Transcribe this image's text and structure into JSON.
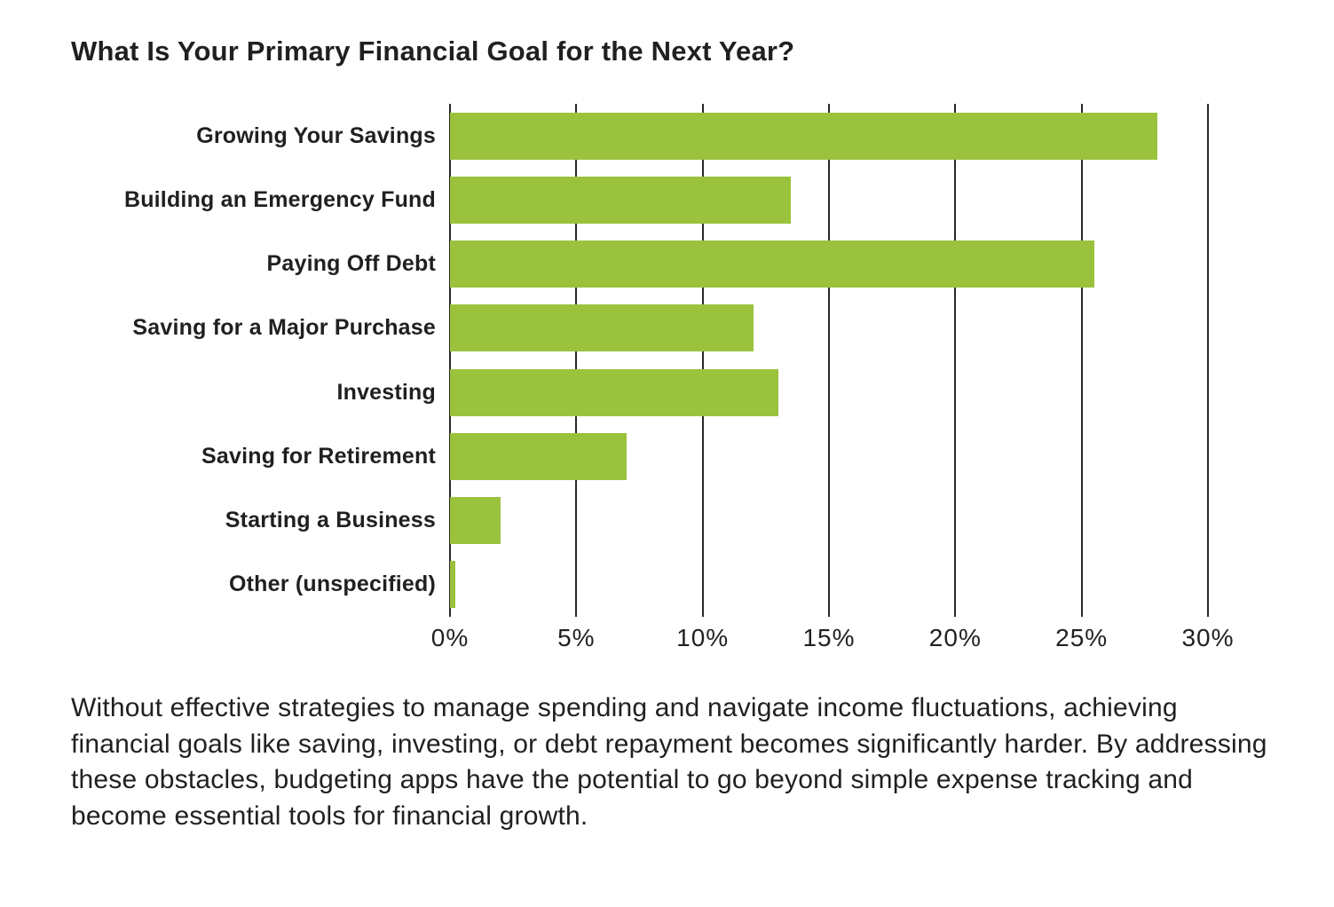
{
  "title": "What Is Your Primary Financial Goal for the Next Year?",
  "caption": "Without effective strategies to manage spending and navigate income fluctuations, achieving financial goals like saving, investing, or debt repayment becomes significantly harder. By addressing these obstacles, budgeting apps have the potential to go beyond simple expense tracking and become essential tools for financial growth.",
  "colors": {
    "bar": "#9bc23d",
    "text": "#221f1f",
    "gridline": "#2b2828"
  },
  "chart_data": {
    "type": "bar",
    "orientation": "horizontal",
    "title": "What Is Your Primary Financial Goal for the Next Year?",
    "categories": [
      "Growing Your Savings",
      "Building an Emergency Fund",
      "Paying Off Debt",
      "Saving for a Major Purchase",
      "Investing",
      "Saving for Retirement",
      "Starting a Business",
      "Other (unspecified)"
    ],
    "values": [
      28,
      13.5,
      25.5,
      12,
      13,
      7,
      2,
      0.2
    ],
    "unit": "%",
    "xlabel": "",
    "ylabel": "",
    "xlim": [
      0,
      30
    ],
    "xticks": [
      {
        "value": 0,
        "label": "0%"
      },
      {
        "value": 5,
        "label": "5%"
      },
      {
        "value": 10,
        "label": "10%"
      },
      {
        "value": 15,
        "label": "15%"
      },
      {
        "value": 20,
        "label": "20%"
      },
      {
        "value": 25,
        "label": "25%"
      },
      {
        "value": 30,
        "label": "30%"
      }
    ],
    "grid": "vertical-gridlines",
    "legend": "none"
  }
}
